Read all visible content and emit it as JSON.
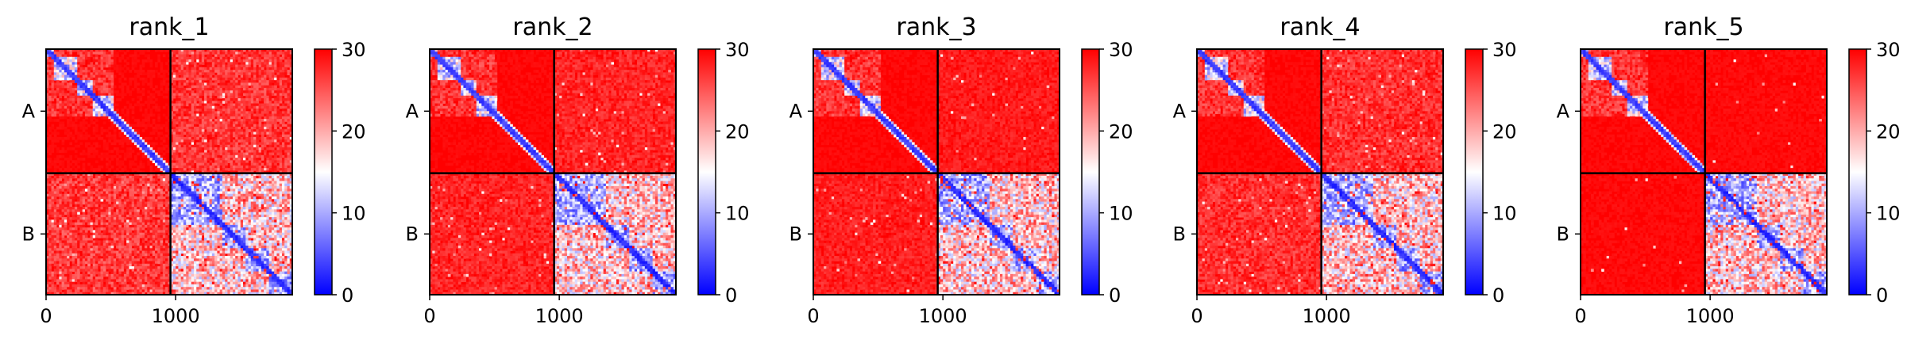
{
  "chart_data": {
    "type": "heatmap",
    "description_of_values": "predicted aligned error matrix per model rank; chains A and B; color scale 0-30",
    "panels": [
      {
        "title": "rank_1",
        "chain_b_offdiag_blue_strength": 0.55,
        "chain_a_offdiag_stripe_strength": 0.5
      },
      {
        "title": "rank_2",
        "chain_b_offdiag_blue_strength": 0.35,
        "chain_a_offdiag_stripe_strength": 0.35
      },
      {
        "title": "rank_3",
        "chain_b_offdiag_blue_strength": 0.3,
        "chain_a_offdiag_stripe_strength": 0.25
      },
      {
        "title": "rank_4",
        "chain_b_offdiag_blue_strength": 0.45,
        "chain_a_offdiag_stripe_strength": 0.45
      },
      {
        "title": "rank_5",
        "chain_b_offdiag_blue_strength": 0.1,
        "chain_a_offdiag_stripe_strength": 0.1
      }
    ],
    "chains": [
      {
        "label": "A",
        "start": 0,
        "end": 960
      },
      {
        "label": "B",
        "start": 960,
        "end": 1900
      }
    ],
    "total_residues": 1900,
    "x_ticks": [
      0,
      1000
    ],
    "x_tick_labels": [
      "0",
      "1000"
    ],
    "y_tick_labels": [
      "A",
      "B"
    ],
    "colorbar": {
      "min": 0,
      "max": 30,
      "ticks": [
        0,
        10,
        20,
        30
      ],
      "tick_labels": [
        "0",
        "10",
        "20",
        "30"
      ],
      "colormap": "bwr",
      "color_low": "#0000ff",
      "color_mid": "#ffffff",
      "color_high": "#ff0000"
    },
    "grid": false,
    "chain_boundary_lines": true
  }
}
